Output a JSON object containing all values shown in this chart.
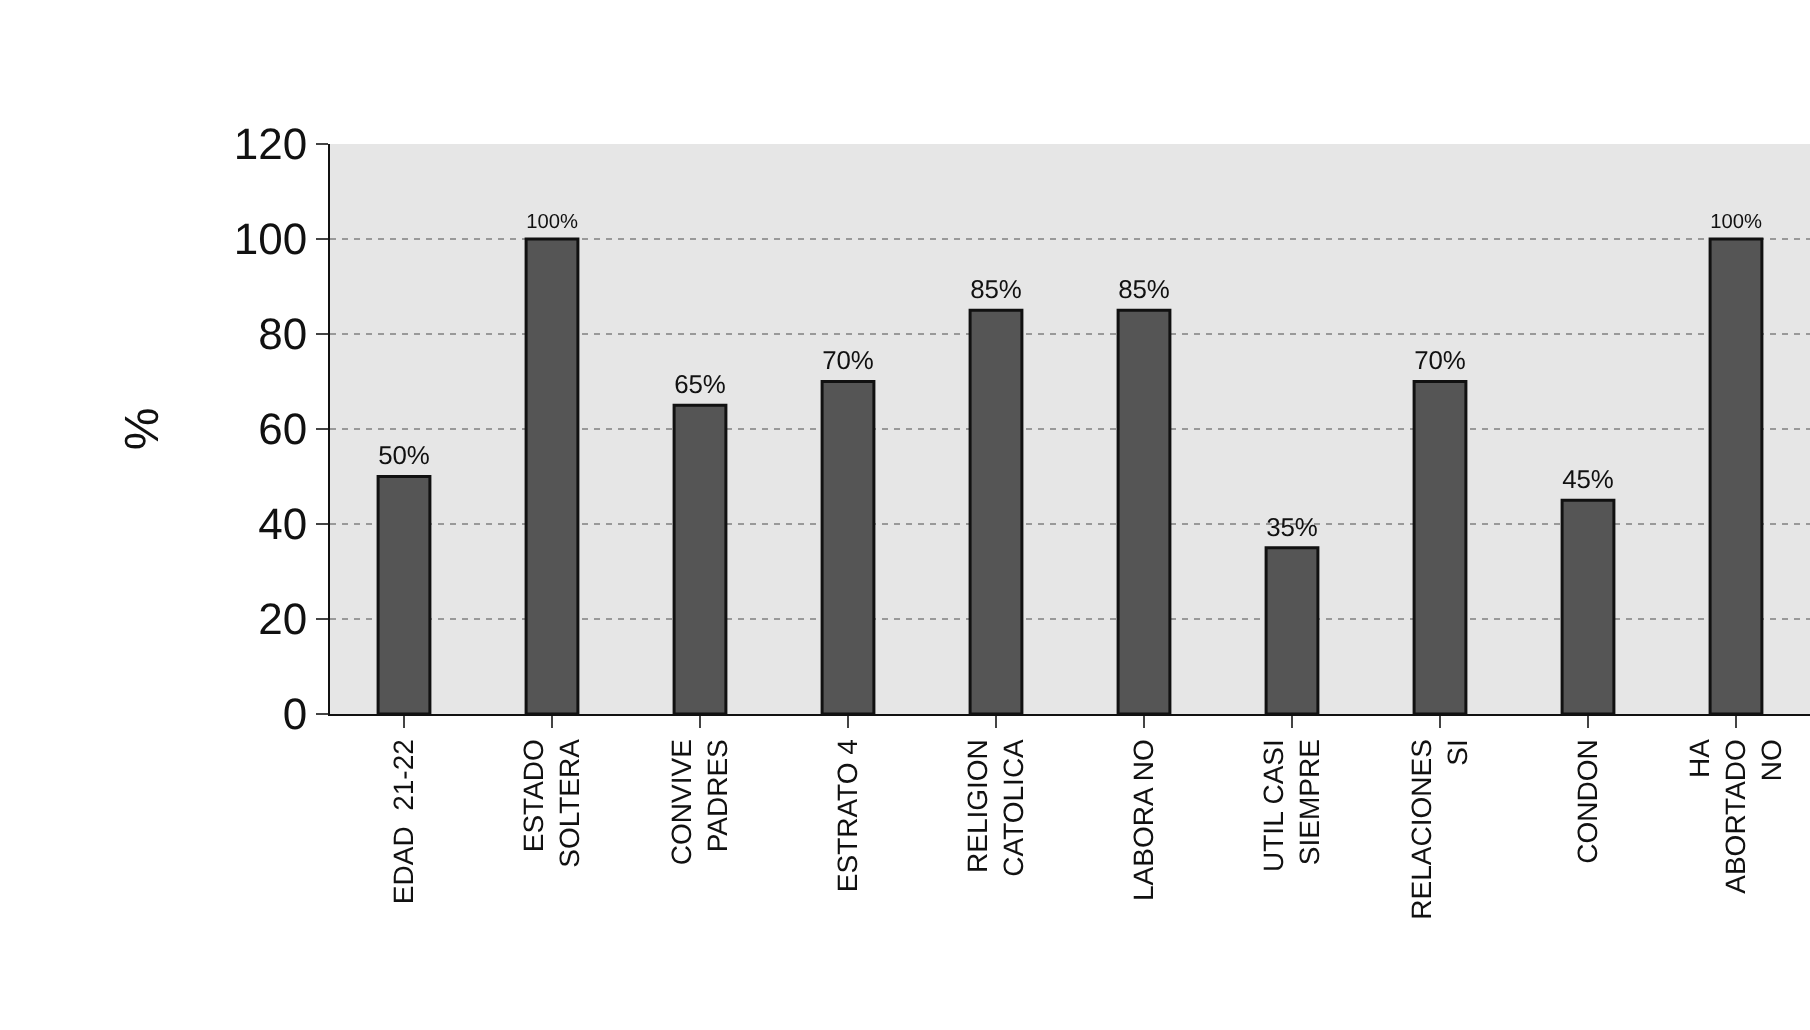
{
  "chart_data": {
    "type": "bar",
    "ylabel": "%",
    "categories": [
      "EDAD  21-22",
      "ESTADO\nSOLTERA",
      "CONVIVE\nPADRES",
      "ESTRATO 4",
      "RELIGION\nCATOLICA",
      "LABORA NO",
      "UTIL CASI\nSIEMPRE",
      "RELACIONES\nSI",
      "CONDON",
      "HA\nABORTADO\nNO"
    ],
    "values": [
      50,
      100,
      65,
      70,
      85,
      85,
      35,
      70,
      45,
      100
    ],
    "value_labels": [
      "50%",
      "100%",
      "65%",
      "70%",
      "85%",
      "85%",
      "35%",
      "70%",
      "45%",
      "100%"
    ],
    "color": "#555555",
    "ylim": [
      0,
      120
    ],
    "yticks": [
      0,
      20,
      40,
      60,
      80,
      100,
      120
    ],
    "grid": "y",
    "legend": false
  }
}
